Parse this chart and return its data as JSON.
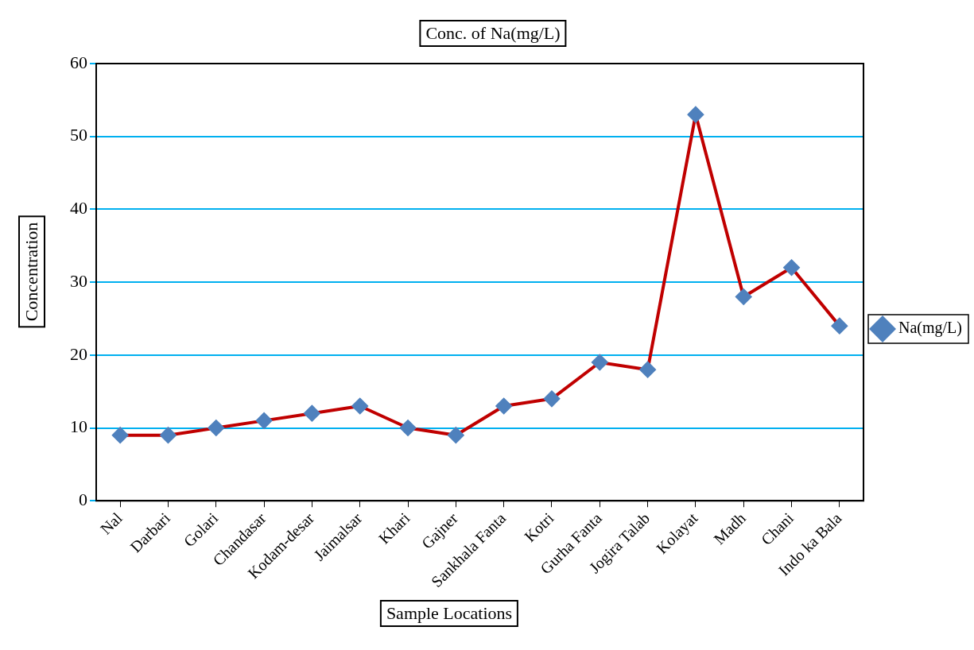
{
  "chart_data": {
    "type": "line",
    "title": "Conc. of Na(mg/L)",
    "xlabel": "Sample Locations",
    "ylabel": "Concentration",
    "categories": [
      "Nal",
      "Darbari",
      "Golari",
      "Chandasar",
      "Kodam-desar",
      "Jaimalsar",
      "Khari",
      "Gajner",
      "Sankhala Fanta",
      "Kotri",
      "Gurha Fanta",
      "Jogira Talab",
      "Kolayat",
      "Madh",
      "Chani",
      "Indo ka Bala"
    ],
    "series": [
      {
        "name": "Na(mg/L)",
        "color": "#c00000",
        "values": [
          9,
          9,
          10,
          11,
          12,
          13,
          10,
          9,
          13,
          14,
          19,
          18,
          53,
          28,
          32,
          24
        ]
      }
    ],
    "ylim": [
      0,
      60
    ],
    "yticks": [
      0,
      10,
      20,
      30,
      40,
      50,
      60
    ],
    "grid": "y",
    "legend": "right",
    "marker": "diamond",
    "line_style": "solid"
  }
}
